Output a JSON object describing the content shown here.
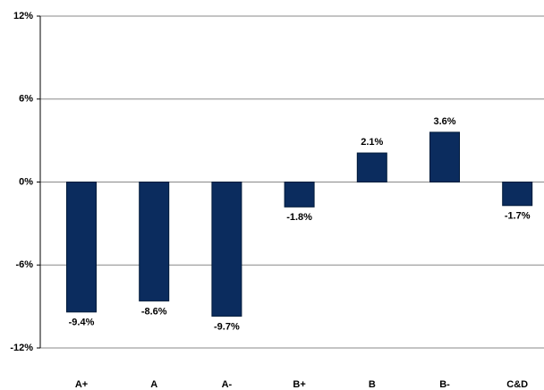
{
  "chart_data": {
    "type": "bar",
    "categories": [
      "A+",
      "A",
      "A-",
      "B+",
      "B",
      "B-",
      "C&D"
    ],
    "values": [
      -9.4,
      -8.6,
      -9.7,
      -1.8,
      2.1,
      3.6,
      -1.7
    ],
    "value_labels": [
      "-9.4%",
      "-8.6%",
      "-9.7%",
      "-1.8%",
      "2.1%",
      "3.6%",
      "-1.7%"
    ],
    "color": "#0b2c5e",
    "ylim": [
      -12,
      12
    ],
    "yticks": [
      {
        "value": -12,
        "label": "-12%"
      },
      {
        "value": -6,
        "label": "-6%"
      },
      {
        "value": 0,
        "label": "0%"
      },
      {
        "value": 6,
        "label": "6%"
      },
      {
        "value": 12,
        "label": "12%"
      }
    ],
    "grid": true
  }
}
